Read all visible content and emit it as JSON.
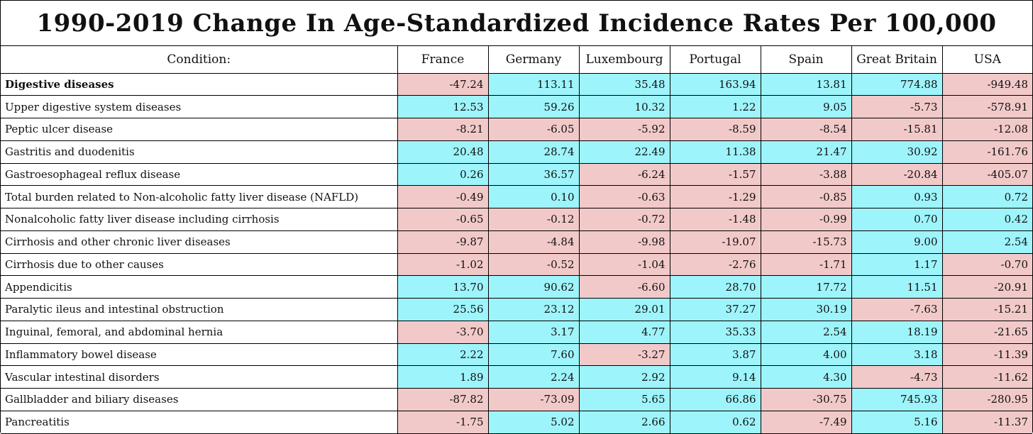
{
  "title": "1990-2019 Change In Age-Standardized Incidence Rates Per 100,000",
  "colors": {
    "positive": "#9ef4fb",
    "negative": "#f2c9c9"
  },
  "chart_data": {
    "type": "table",
    "title": "1990-2019 Change In Age-Standardized Incidence Rates Per 100,000",
    "columns": [
      "Condition:",
      "France",
      "Germany",
      "Luxembourg",
      "Portugal",
      "Spain",
      "Great Britain",
      "USA"
    ],
    "rows": [
      {
        "condition": "Digestive diseases",
        "bold": true,
        "values": [
          -47.24,
          113.11,
          35.48,
          163.94,
          13.81,
          774.88,
          -949.48
        ]
      },
      {
        "condition": "Upper digestive system diseases",
        "values": [
          12.53,
          59.26,
          10.32,
          1.22,
          9.05,
          -5.73,
          -578.91
        ]
      },
      {
        "condition": "Peptic ulcer disease",
        "values": [
          -8.21,
          -6.05,
          -5.92,
          -8.59,
          -8.54,
          -15.81,
          -12.08
        ]
      },
      {
        "condition": "Gastritis and duodenitis",
        "values": [
          20.48,
          28.74,
          22.49,
          11.38,
          21.47,
          30.92,
          -161.76
        ]
      },
      {
        "condition": "Gastroesophageal reflux disease",
        "values": [
          0.26,
          36.57,
          -6.24,
          -1.57,
          -3.88,
          -20.84,
          -405.07
        ]
      },
      {
        "condition": "Total burden related to Non-alcoholic fatty liver disease (NAFLD)",
        "values": [
          -0.49,
          0.1,
          -0.63,
          -1.29,
          -0.85,
          0.93,
          0.72
        ]
      },
      {
        "condition": "Nonalcoholic fatty liver disease including cirrhosis",
        "values": [
          -0.65,
          -0.12,
          -0.72,
          -1.48,
          -0.99,
          0.7,
          0.42
        ]
      },
      {
        "condition": "Cirrhosis and other chronic liver diseases",
        "values": [
          -9.87,
          -4.84,
          -9.98,
          -19.07,
          -15.73,
          9.0,
          2.54
        ]
      },
      {
        "condition": "Cirrhosis due to other causes",
        "values": [
          -1.02,
          -0.52,
          -1.04,
          -2.76,
          -1.71,
          1.17,
          -0.7
        ]
      },
      {
        "condition": "Appendicitis",
        "values": [
          13.7,
          90.62,
          -6.6,
          28.7,
          17.72,
          11.51,
          -20.91
        ]
      },
      {
        "condition": "Paralytic ileus and intestinal obstruction",
        "values": [
          25.56,
          23.12,
          29.01,
          37.27,
          30.19,
          -7.63,
          -15.21
        ]
      },
      {
        "condition": "Inguinal, femoral, and abdominal hernia",
        "values": [
          -3.7,
          3.17,
          4.77,
          35.33,
          2.54,
          18.19,
          -21.65
        ]
      },
      {
        "condition": "Inflammatory bowel disease",
        "values": [
          2.22,
          7.6,
          -3.27,
          3.87,
          4.0,
          3.18,
          -11.39
        ]
      },
      {
        "condition": "Vascular intestinal disorders",
        "values": [
          1.89,
          2.24,
          2.92,
          9.14,
          4.3,
          -4.73,
          -11.62
        ]
      },
      {
        "condition": "Gallbladder and biliary diseases",
        "values": [
          -87.82,
          -73.09,
          5.65,
          66.86,
          -30.75,
          745.93,
          -280.95
        ]
      },
      {
        "condition": "Pancreatitis",
        "values": [
          -1.75,
          5.02,
          2.66,
          0.62,
          -7.49,
          5.16,
          -11.37
        ]
      }
    ]
  }
}
